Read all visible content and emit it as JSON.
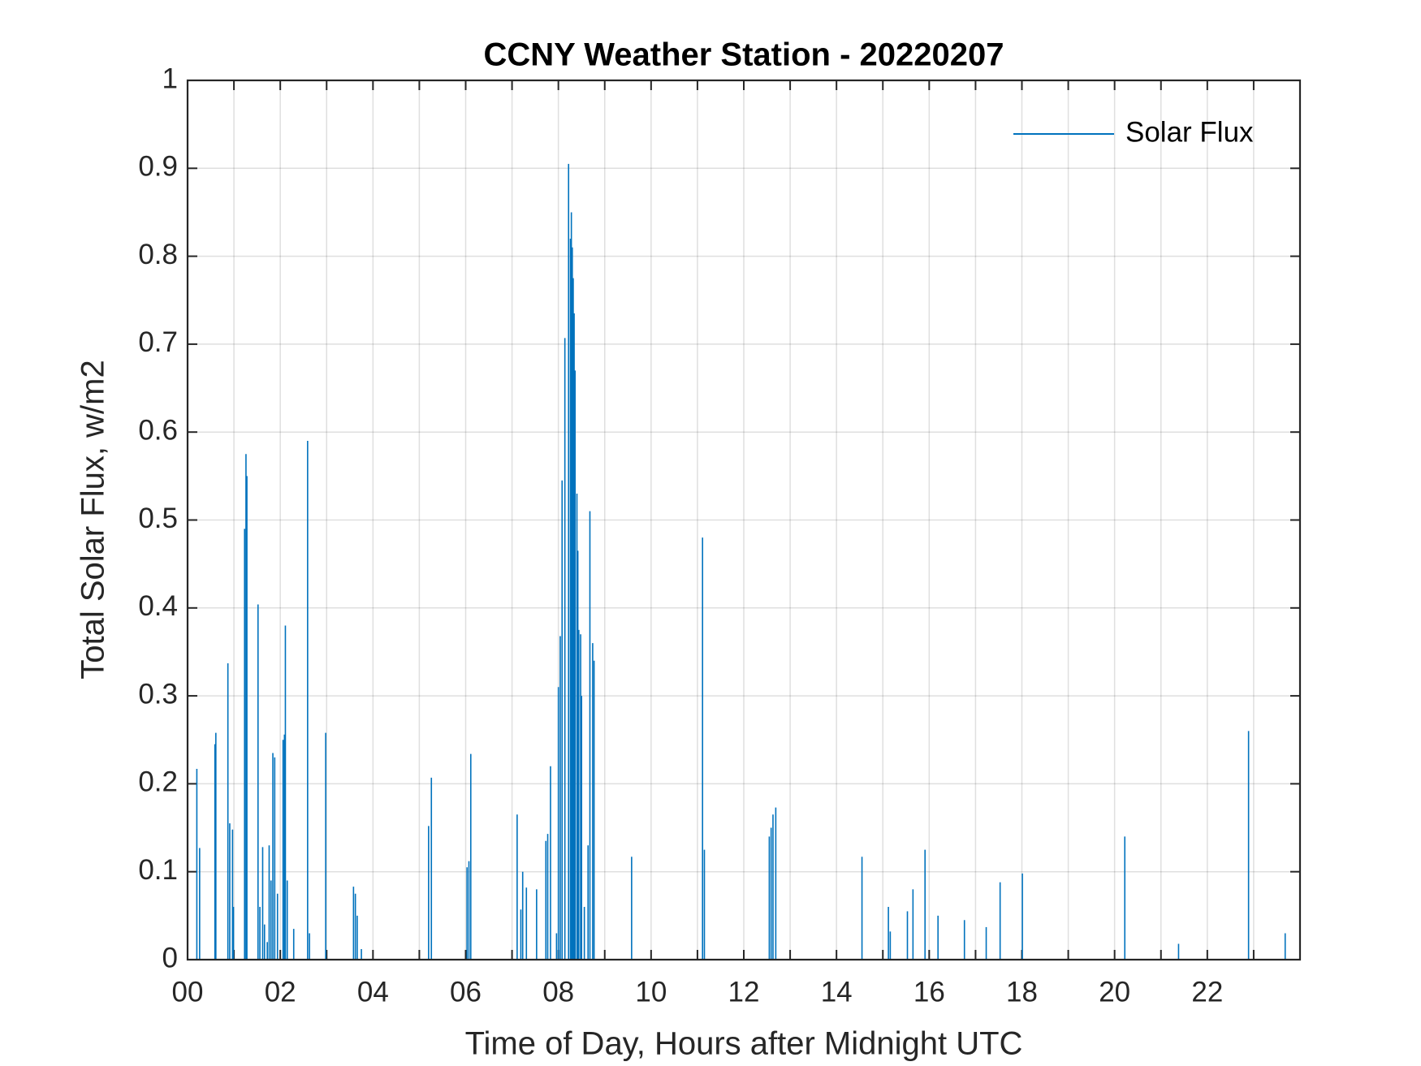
{
  "chart_data": {
    "type": "line",
    "title": "CCNY Weather Station - 20220207",
    "xlabel": "Time of Day, Hours after Midnight UTC",
    "ylabel": "Total Solar Flux, w/m2",
    "xlim": [
      0,
      24
    ],
    "ylim": [
      0,
      1
    ],
    "xticks": [
      {
        "value": 0,
        "label": "00"
      },
      {
        "value": 2,
        "label": "02"
      },
      {
        "value": 4,
        "label": "04"
      },
      {
        "value": 6,
        "label": "06"
      },
      {
        "value": 8,
        "label": "08"
      },
      10,
      12,
      14,
      16,
      18,
      20,
      22
    ],
    "xgrid_minor": [
      1,
      3,
      5,
      7,
      9,
      11,
      13,
      15,
      17,
      19,
      21,
      23
    ],
    "yticks": [
      0,
      0.1,
      0.2,
      0.3,
      0.4,
      0.5,
      0.6,
      0.7,
      0.8,
      0.9,
      1
    ],
    "grid": true,
    "legend": "top-right",
    "series": [
      {
        "name": "Solar Flux",
        "color": "#0072BD",
        "x": [
          0.2,
          0.26,
          0.59,
          0.61,
          0.87,
          0.91,
          0.97,
          0.99,
          1.23,
          1.26,
          1.28,
          1.52,
          1.56,
          1.62,
          1.66,
          1.72,
          1.76,
          1.8,
          1.84,
          1.88,
          1.94,
          2.06,
          2.09,
          2.11,
          2.15,
          2.29,
          2.59,
          2.63,
          2.98,
          3.58,
          3.62,
          3.66,
          3.75,
          5.2,
          5.26,
          6.03,
          6.07,
          6.11,
          7.11,
          7.19,
          7.23,
          7.31,
          7.53,
          7.73,
          7.77,
          7.83,
          7.96,
          8.0,
          8.04,
          8.08,
          8.14,
          8.22,
          8.26,
          8.28,
          8.3,
          8.32,
          8.34,
          8.36,
          8.4,
          8.42,
          8.44,
          8.48,
          8.5,
          8.56,
          8.64,
          8.68,
          8.74,
          8.77,
          9.58,
          11.11,
          11.15,
          12.55,
          12.59,
          12.63,
          12.69,
          14.55,
          15.12,
          15.16,
          15.53,
          15.65,
          15.91,
          16.19,
          16.76,
          17.23,
          17.53,
          18.01,
          20.22,
          21.38,
          22.89,
          23.68
        ],
        "values": [
          0.217,
          0.127,
          0.245,
          0.258,
          0.337,
          0.155,
          0.148,
          0.06,
          0.49,
          0.575,
          0.55,
          0.404,
          0.06,
          0.128,
          0.04,
          0.02,
          0.13,
          0.09,
          0.235,
          0.23,
          0.075,
          0.25,
          0.256,
          0.38,
          0.09,
          0.035,
          0.59,
          0.03,
          0.258,
          0.083,
          0.075,
          0.05,
          0.012,
          0.152,
          0.207,
          0.105,
          0.112,
          0.234,
          0.165,
          0.057,
          0.1,
          0.082,
          0.08,
          0.135,
          0.143,
          0.22,
          0.03,
          0.31,
          0.368,
          0.545,
          0.707,
          0.905,
          0.82,
          0.85,
          0.81,
          0.775,
          0.735,
          0.67,
          0.53,
          0.465,
          0.375,
          0.37,
          0.3,
          0.06,
          0.13,
          0.51,
          0.36,
          0.34,
          0.117,
          0.48,
          0.125,
          0.14,
          0.15,
          0.165,
          0.173,
          0.117,
          0.06,
          0.032,
          0.055,
          0.08,
          0.125,
          0.05,
          0.045,
          0.037,
          0.088,
          0.098,
          0.14,
          0.018,
          0.26,
          0.03
        ]
      }
    ]
  }
}
